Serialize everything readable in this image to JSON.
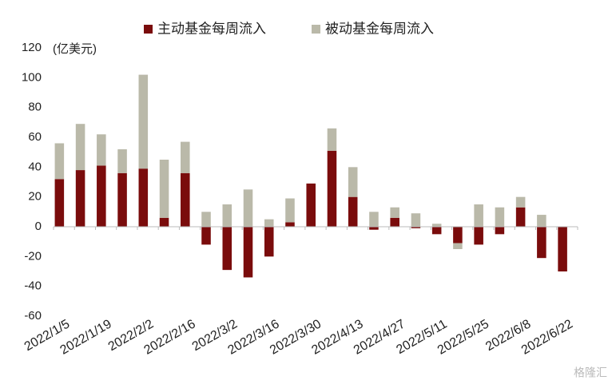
{
  "chart_data": {
    "type": "stacked-bar",
    "y_label": "(亿美元)",
    "watermark": "格隆汇",
    "categories": [
      "2022/1/5",
      null,
      "2022/1/19",
      null,
      "2022/2/2",
      null,
      "2022/2/16",
      null,
      "2022/3/2",
      null,
      "2022/3/16",
      null,
      "2022/3/30",
      null,
      "2022/4/13",
      null,
      "2022/4/27",
      null,
      "2022/5/11",
      null,
      "2022/5/25",
      null,
      "2022/6/8",
      null,
      "2022/6/22"
    ],
    "series": [
      {
        "name": "主动基金每周流入",
        "color": "#7a0c0c",
        "values": [
          32,
          38,
          41,
          36,
          39,
          6,
          36,
          -12,
          -29,
          -34,
          -20,
          3,
          29,
          51,
          20,
          -2,
          6,
          -1,
          -5,
          -11,
          -12,
          -5,
          13,
          -21,
          -30
        ]
      },
      {
        "name": "被动基金每周流入",
        "color": "#bab9a9",
        "values": [
          24,
          31,
          21,
          16,
          63,
          39,
          21,
          10,
          15,
          25,
          5,
          16,
          0,
          15,
          20,
          10,
          7,
          9,
          2,
          -4,
          15,
          13,
          7,
          8,
          0
        ]
      }
    ],
    "ylim": [
      -60,
      120
    ],
    "yticks": [
      -60,
      -40,
      -20,
      0,
      20,
      40,
      60,
      80,
      100,
      120
    ],
    "grid": false
  }
}
